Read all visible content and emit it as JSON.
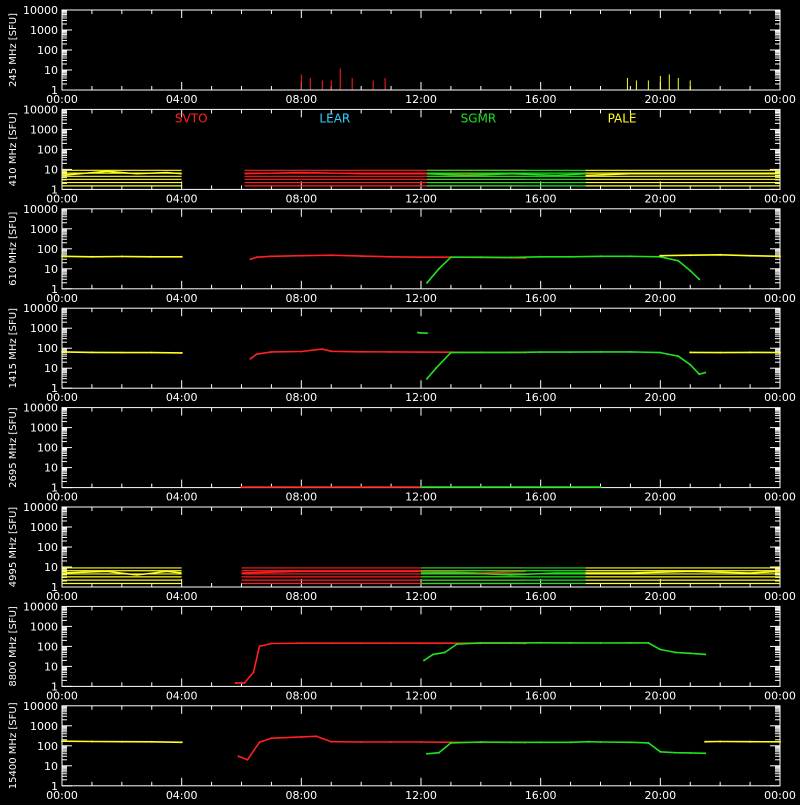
{
  "chart_data": {
    "type": "line",
    "x_range": [
      "00:00",
      "24:00"
    ],
    "x_ticks": [
      "00:00",
      "04:00",
      "08:00",
      "12:00",
      "16:00",
      "20:00",
      "00:00"
    ],
    "y_scale": "log",
    "y_ticks": [
      "1",
      "10",
      "100",
      "1000",
      "10000"
    ],
    "ylim": [
      1,
      10000
    ],
    "stations": [
      {
        "name": "SVTO",
        "color": "#ff2020"
      },
      {
        "name": "LEAR",
        "color": "#30d0ff"
      },
      {
        "name": "SGMR",
        "color": "#20e020"
      },
      {
        "name": "PALE",
        "color": "#ffff20"
      }
    ],
    "panels": [
      {
        "ylabel": "245 MHz [SFU]",
        "series": [
          {
            "station": "SVTO",
            "color": "#ff2020",
            "kind": "spikes",
            "x": [
              8.0,
              8.3,
              8.7,
              9.0,
              9.3,
              9.7,
              10.4,
              10.8
            ],
            "y": [
              6,
              4,
              3,
              3,
              12,
              4,
              3,
              4
            ]
          },
          {
            "station": "PALE",
            "color": "#ffff20",
            "kind": "spikes",
            "x": [
              18.9,
              19.2,
              19.6,
              20.0,
              20.3,
              20.6,
              21.0
            ],
            "y": [
              4,
              3,
              3,
              5,
              6,
              4,
              3
            ]
          }
        ]
      },
      {
        "ylabel": "410 MHz [SFU]",
        "show_legend": true,
        "series": [
          {
            "station": "PALE",
            "color": "#ffff20",
            "kind": "band",
            "x": [
              0.0,
              1.5,
              2.5,
              3.5,
              4.0
            ],
            "y": [
              5,
              8,
              6,
              7,
              6
            ]
          },
          {
            "station": "SVTO",
            "color": "#ff2020",
            "kind": "band",
            "x": [
              6.1,
              8.0,
              10.0,
              12.0,
              13.0,
              15.5
            ],
            "y": [
              6,
              7,
              6,
              6,
              6,
              6
            ]
          },
          {
            "station": "SGMR",
            "color": "#20e020",
            "kind": "band",
            "x": [
              12.2,
              13.5,
              15.0,
              16.5,
              17.5
            ],
            "y": [
              6,
              5,
              6,
              5,
              6
            ]
          },
          {
            "station": "PALE",
            "color": "#ffff20",
            "kind": "band",
            "x": [
              17.5,
              19.0,
              21.0,
              23.0,
              24.0
            ],
            "y": [
              5,
              6,
              6,
              6,
              6
            ]
          }
        ]
      },
      {
        "ylabel": "610 MHz [SFU]",
        "series": [
          {
            "station": "PALE",
            "color": "#ffff20",
            "kind": "line",
            "x": [
              0.0,
              1.0,
              2.0,
              3.0,
              4.0
            ],
            "y": [
              42,
              40,
              41,
              40,
              40
            ]
          },
          {
            "station": "SVTO",
            "color": "#ff2020",
            "kind": "line",
            "x": [
              6.3,
              6.5,
              7.0,
              8.0,
              9.0,
              10.0,
              11.0,
              12.0,
              13.0,
              14.0,
              15.0,
              15.5
            ],
            "y": [
              30,
              38,
              42,
              45,
              48,
              43,
              40,
              38,
              38,
              37,
              36,
              35
            ]
          },
          {
            "station": "SGMR",
            "color": "#20e020",
            "kind": "line",
            "x": [
              12.2,
              12.6,
              13.0,
              14.0,
              15.0,
              16.0,
              17.0,
              18.0,
              19.0,
              20.0,
              20.6,
              21.0,
              21.3
            ],
            "y": [
              2,
              10,
              38,
              38,
              37,
              40,
              40,
              42,
              42,
              40,
              25,
              8,
              3
            ]
          },
          {
            "station": "PALE",
            "color": "#ffff20",
            "kind": "line",
            "x": [
              20.0,
              21.0,
              22.0,
              23.0,
              24.0
            ],
            "y": [
              45,
              48,
              50,
              45,
              42
            ]
          }
        ]
      },
      {
        "ylabel": "1415 MHz [SFU]",
        "series": [
          {
            "station": "PALE",
            "color": "#ffff20",
            "kind": "line",
            "x": [
              0.0,
              1.0,
              2.0,
              3.0,
              4.0
            ],
            "y": [
              65,
              62,
              60,
              60,
              58
            ]
          },
          {
            "station": "SVTO",
            "color": "#ff2020",
            "kind": "line",
            "x": [
              6.3,
              6.5,
              7.0,
              8.0,
              8.7,
              9.0,
              10.0,
              11.0,
              12.0,
              13.0,
              14.0,
              15.0,
              15.5
            ],
            "y": [
              30,
              50,
              65,
              68,
              90,
              70,
              66,
              65,
              64,
              63,
              62,
              62,
              60
            ]
          },
          {
            "station": "SGMR",
            "color": "#20e020",
            "kind": "line",
            "x": [
              12.2,
              12.5,
              13.0,
              14.0,
              15.0,
              16.0,
              17.0,
              18.0,
              19.0,
              20.0,
              20.6,
              21.0,
              21.3,
              21.5
            ],
            "y": [
              3,
              10,
              60,
              62,
              62,
              64,
              64,
              65,
              65,
              60,
              40,
              15,
              5,
              6
            ]
          },
          {
            "station": "SGMR",
            "color": "#20e020",
            "kind": "line",
            "x": [
              11.9,
              12.0,
              12.2
            ],
            "y": [
              600,
              580,
              560
            ]
          },
          {
            "station": "PALE",
            "color": "#ffff20",
            "kind": "line",
            "x": [
              21.0,
              22.0,
              23.0,
              24.0
            ],
            "y": [
              62,
              60,
              62,
              60
            ]
          }
        ]
      },
      {
        "ylabel": "2695 MHz [SFU]",
        "series": [
          {
            "station": "SVTO",
            "color": "#ff2020",
            "kind": "line",
            "x": [
              6.0,
              8.0,
              10.0,
              12.0
            ],
            "y": [
              0.8,
              0.8,
              0.8,
              0.8
            ]
          },
          {
            "station": "SGMR",
            "color": "#20e020",
            "kind": "line",
            "x": [
              12.0,
              14.0,
              16.0,
              18.0
            ],
            "y": [
              0.8,
              0.8,
              0.8,
              0.8
            ]
          }
        ]
      },
      {
        "ylabel": "4995 MHz [SFU]",
        "series": [
          {
            "station": "PALE",
            "color": "#ffff20",
            "kind": "band",
            "x": [
              0.0,
              1.5,
              2.5,
              3.5,
              4.0
            ],
            "y": [
              5,
              6,
              4,
              6,
              5
            ]
          },
          {
            "station": "SVTO",
            "color": "#ff2020",
            "kind": "band",
            "x": [
              6.0,
              8.0,
              10.0,
              12.0,
              14.0,
              15.5
            ],
            "y": [
              5,
              6,
              6,
              6,
              5,
              6
            ]
          },
          {
            "station": "SGMR",
            "color": "#20e020",
            "kind": "band",
            "x": [
              12.0,
              13.5,
              15.0,
              16.5,
              17.5
            ],
            "y": [
              5,
              5,
              4,
              5,
              5
            ]
          },
          {
            "station": "PALE",
            "color": "#ffff20",
            "kind": "band",
            "x": [
              17.5,
              19.0,
              21.0,
              23.0,
              24.0
            ],
            "y": [
              5,
              5,
              6,
              5,
              6
            ]
          }
        ]
      },
      {
        "ylabel": "8800 MHz [SFU]",
        "series": [
          {
            "station": "SVTO",
            "color": "#ff2020",
            "kind": "line",
            "x": [
              5.8,
              6.1,
              6.4,
              6.6,
              7.0,
              8.0,
              9.0,
              10.0,
              11.0,
              12.0,
              13.0,
              14.0,
              15.0,
              15.5
            ],
            "y": [
              1.5,
              1.5,
              5,
              100,
              140,
              145,
              145,
              145,
              145,
              145,
              145,
              145,
              145,
              140
            ]
          },
          {
            "station": "SGMR",
            "color": "#20e020",
            "kind": "line",
            "x": [
              12.1,
              12.4,
              12.8,
              13.2,
              14.0,
              15.0,
              16.0,
              17.0,
              18.0,
              19.0,
              19.6,
              20.0,
              20.5,
              21.0,
              21.5
            ],
            "y": [
              20,
              40,
              50,
              130,
              150,
              150,
              152,
              150,
              148,
              150,
              150,
              70,
              50,
              45,
              40
            ]
          }
        ]
      },
      {
        "ylabel": "15400 MHz [SFU]",
        "series": [
          {
            "station": "PALE",
            "color": "#ffff20",
            "kind": "line",
            "x": [
              0.0,
              1.0,
              2.0,
              3.0,
              4.0
            ],
            "y": [
              170,
              165,
              160,
              158,
              150
            ]
          },
          {
            "station": "SVTO",
            "color": "#ff2020",
            "kind": "line",
            "x": [
              5.9,
              6.2,
              6.6,
              7.0,
              8.0,
              8.5,
              9.0,
              10.0,
              11.0,
              12.0,
              13.0,
              14.0,
              15.0,
              15.5
            ],
            "y": [
              30,
              20,
              150,
              240,
              280,
              300,
              160,
              155,
              155,
              155,
              150,
              150,
              150,
              145
            ]
          },
          {
            "station": "SGMR",
            "color": "#20e020",
            "kind": "line",
            "x": [
              12.2,
              12.6,
              13.0,
              14.0,
              15.0,
              16.0,
              17.0,
              17.6,
              18.0,
              19.0,
              19.6,
              20.0,
              20.5,
              21.0,
              21.5
            ],
            "y": [
              40,
              45,
              140,
              155,
              150,
              150,
              150,
              160,
              155,
              150,
              140,
              50,
              45,
              44,
              42
            ]
          },
          {
            "station": "PALE",
            "color": "#ffff20",
            "kind": "line",
            "x": [
              21.5,
              22.0,
              23.0,
              24.0
            ],
            "y": [
              160,
              165,
              160,
              158
            ]
          }
        ]
      }
    ]
  }
}
